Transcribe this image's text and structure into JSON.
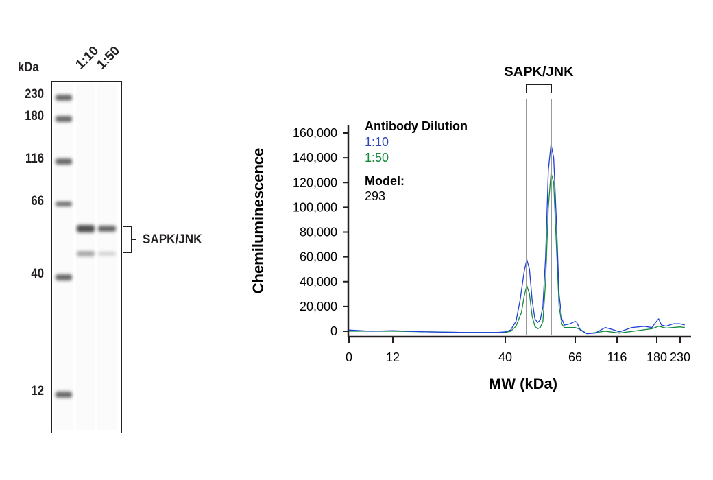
{
  "blot": {
    "unit_label": "kDa",
    "lane_labels": [
      "1:10",
      "1:50"
    ],
    "markers": [
      "230",
      "180",
      "116",
      "66",
      "40",
      "12"
    ],
    "target_label": "SAPK/JNK"
  },
  "chart_data": {
    "type": "line",
    "title": "",
    "xlabel": "MW (kDa)",
    "ylabel": "Chemiluminescence",
    "xticks": [
      0,
      12,
      40,
      66,
      116,
      180,
      230
    ],
    "xtick_labels": [
      "0",
      "12",
      "40",
      "66",
      "116",
      "180",
      "230"
    ],
    "yticks": [
      0,
      20000,
      40000,
      60000,
      80000,
      100000,
      120000,
      140000,
      160000
    ],
    "ytick_labels": [
      "0",
      "20,000",
      "40,000",
      "60,000",
      "80,000",
      "100,000",
      "120,000",
      "140,000",
      "160,000"
    ],
    "ylim": [
      0,
      160000
    ],
    "x_scale": "non-linear (marker-calibrated)",
    "grid": false,
    "legend": {
      "title": "Antibody Dilution",
      "placement": "top-left",
      "model_label": "Model:",
      "model_value": "293"
    },
    "annotation": {
      "text": "SAPK/JNK",
      "peaks_kDa": [
        48,
        57
      ]
    },
    "series": [
      {
        "name": "1:10",
        "color": "#1f3fd9",
        "x": [
          0,
          6,
          12,
          20,
          30,
          38,
          40,
          42,
          44,
          45.5,
          47,
          48,
          49,
          50,
          51,
          52,
          53,
          54,
          55,
          56,
          57,
          58,
          59,
          60,
          61,
          62,
          64,
          66,
          68,
          72,
          80,
          90,
          102,
          110,
          120,
          140,
          160,
          172,
          178,
          184,
          190,
          200,
          215,
          230,
          240
        ],
        "y": [
          1000,
          0,
          500,
          -500,
          -1000,
          -1000,
          -500,
          1000,
          8000,
          25000,
          48000,
          58000,
          50000,
          25000,
          10000,
          7000,
          9000,
          20000,
          60000,
          130000,
          151000,
          140000,
          90000,
          30000,
          10000,
          5000,
          6000,
          8000,
          7000,
          1000,
          -2000,
          -1500,
          3000,
          1500,
          -500,
          3000,
          4000,
          3000,
          7000,
          10000,
          5000,
          4000,
          6000,
          6000,
          5000
        ]
      },
      {
        "name": "1:50",
        "color": "#138a3c",
        "x": [
          0,
          12,
          30,
          40,
          42,
          44,
          46,
          47,
          48,
          49,
          50,
          51,
          52,
          53,
          54,
          55,
          56,
          57,
          58,
          59,
          60,
          61,
          62,
          66,
          72,
          80,
          102,
          120,
          172,
          184,
          200,
          230,
          240
        ],
        "y": [
          0,
          0,
          -1000,
          -1000,
          0,
          4000,
          15000,
          28000,
          37000,
          30000,
          12000,
          4000,
          2000,
          3000,
          8000,
          40000,
          100000,
          128000,
          120000,
          70000,
          20000,
          6000,
          3000,
          3000,
          1500,
          -2000,
          0,
          -1500,
          2000,
          4000,
          2500,
          3500,
          3000
        ]
      }
    ]
  }
}
